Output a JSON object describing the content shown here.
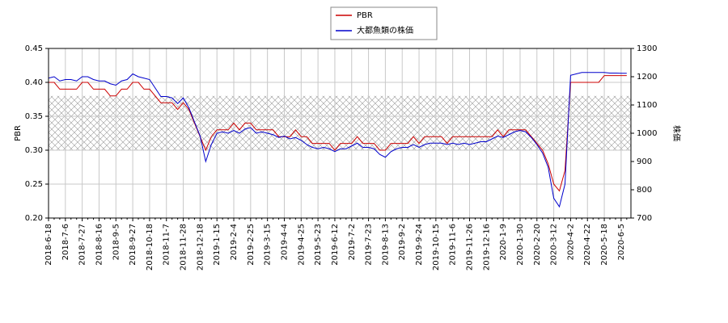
{
  "chart_data": {
    "type": "line",
    "categories": [
      "2018-6-18",
      null,
      null,
      "2018-7-6",
      null,
      null,
      "2018-7-27",
      null,
      null,
      "2018-8-16",
      null,
      null,
      "2018-9-5",
      null,
      null,
      "2018-9-27",
      null,
      null,
      "2018-10-18",
      null,
      null,
      "2018-11-7",
      null,
      null,
      "2018-11-28",
      null,
      null,
      "2018-12-18",
      null,
      null,
      "2019-1-15",
      null,
      null,
      "2019-2-4",
      null,
      null,
      "2019-2-25",
      null,
      null,
      "2019-3-15",
      null,
      null,
      "2019-4-4",
      null,
      null,
      "2019-4-25",
      null,
      null,
      "2019-5-23",
      null,
      null,
      "2019-6-12",
      null,
      null,
      "2019-7-2",
      null,
      null,
      "2019-7-23",
      null,
      null,
      "2019-8-13",
      null,
      null,
      "2019-9-2",
      null,
      null,
      "2019-9-24",
      null,
      null,
      "2019-10-15",
      null,
      null,
      "2019-11-6",
      null,
      null,
      "2019-11-26",
      null,
      null,
      "2019-12-16",
      null,
      null,
      "2020-1-9",
      null,
      null,
      "2020-1-30",
      null,
      null,
      "2020-2-20",
      null,
      null,
      "2020-3-12",
      null,
      null,
      "2020-4-2",
      null,
      null,
      "2020-4-22",
      null,
      null,
      "2020-5-18",
      null,
      null,
      "2020-6-5",
      null
    ],
    "series": [
      {
        "name": "PBR",
        "color": "#cc0000",
        "axis": "y",
        "values": [
          0.4,
          0.4,
          0.39,
          0.39,
          0.39,
          0.39,
          0.4,
          0.4,
          0.39,
          0.39,
          0.39,
          0.38,
          0.38,
          0.39,
          0.39,
          0.4,
          0.4,
          0.39,
          0.39,
          0.38,
          0.37,
          0.37,
          0.37,
          0.36,
          0.37,
          0.36,
          0.34,
          0.32,
          0.3,
          0.32,
          0.33,
          0.33,
          0.33,
          0.34,
          0.33,
          0.34,
          0.34,
          0.33,
          0.33,
          0.33,
          0.33,
          0.32,
          0.32,
          0.32,
          0.33,
          0.32,
          0.32,
          0.31,
          0.31,
          0.31,
          0.31,
          0.3,
          0.31,
          0.31,
          0.31,
          0.32,
          0.31,
          0.31,
          0.31,
          0.3,
          0.3,
          0.31,
          0.31,
          0.31,
          0.31,
          0.32,
          0.31,
          0.32,
          0.32,
          0.32,
          0.32,
          0.31,
          0.32,
          0.32,
          0.32,
          0.32,
          0.32,
          0.32,
          0.32,
          0.32,
          0.33,
          0.32,
          0.33,
          0.33,
          0.33,
          0.33,
          0.32,
          0.31,
          0.3,
          0.28,
          0.25,
          0.24,
          0.27,
          0.4,
          0.4,
          0.4,
          0.4,
          0.4,
          0.4,
          0.41,
          0.41,
          0.41,
          0.41,
          0.41
        ]
      },
      {
        "name": "大都魚類の株価",
        "color": "#0000cc",
        "axis": "y2",
        "values": [
          1195,
          1200,
          1185,
          1190,
          1190,
          1185,
          1200,
          1200,
          1190,
          1185,
          1185,
          1175,
          1170,
          1185,
          1190,
          1210,
          1200,
          1195,
          1190,
          1160,
          1130,
          1130,
          1125,
          1105,
          1125,
          1090,
          1040,
          990,
          900,
          960,
          1000,
          1005,
          1000,
          1010,
          1000,
          1015,
          1020,
          1000,
          1005,
          1000,
          995,
          985,
          990,
          980,
          985,
          975,
          960,
          950,
          945,
          950,
          945,
          935,
          945,
          945,
          955,
          965,
          950,
          950,
          945,
          925,
          915,
          935,
          945,
          950,
          950,
          960,
          950,
          960,
          965,
          965,
          965,
          960,
          965,
          960,
          965,
          960,
          965,
          970,
          970,
          980,
          990,
          985,
          995,
          1005,
          1010,
          1005,
          985,
          960,
          930,
          880,
          770,
          740,
          820,
          1205,
          1210,
          1215,
          1215,
          1215,
          1215,
          1215,
          1213,
          1213,
          1212,
          1212
        ]
      }
    ],
    "ylabel": "PBR",
    "y2label": "株価",
    "ylim": [
      0.2,
      0.45
    ],
    "yticks": [
      {
        "value": 0.2,
        "label": "0.20"
      },
      {
        "value": 0.25,
        "label": "0.25"
      },
      {
        "value": 0.3,
        "label": "0.30"
      },
      {
        "value": 0.35,
        "label": "0.35"
      },
      {
        "value": 0.4,
        "label": "0.40"
      },
      {
        "value": 0.45,
        "label": "0.45"
      }
    ],
    "y2lim": [
      700,
      1300
    ],
    "y2ticks": [
      700,
      800,
      900,
      1000,
      1100,
      1200,
      1300
    ],
    "shaded_range": [
      0.3,
      0.38
    ],
    "grid": true,
    "legend": "top"
  }
}
